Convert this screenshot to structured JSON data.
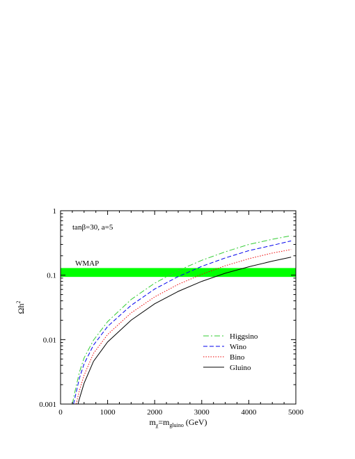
{
  "chart_data": {
    "type": "line",
    "title": "",
    "annotation": "tanβ=30, a=5",
    "band_label": "WMAP",
    "band": {
      "ymin": 0.094,
      "ymax": 0.129,
      "color": "#00ff00"
    },
    "xlabel": {
      "main": "m",
      "sub1": "χ",
      "mid": "=m",
      "sub2": "gluino",
      "tail": " (GeV)"
    },
    "ylabel": {
      "main": "Ωh",
      "sup": "2"
    },
    "xlim": [
      0,
      5000
    ],
    "ylim": [
      0.001,
      1
    ],
    "yscale": "log",
    "x_ticks": [
      0,
      1000,
      2000,
      3000,
      4000,
      5000
    ],
    "x_tick_labels": [
      "0",
      "1000",
      "2000",
      "3000",
      "4000",
      "5000"
    ],
    "y_ticks": [
      0.001,
      0.01,
      0.1,
      1
    ],
    "y_tick_labels": [
      "0.001",
      "0.01",
      "0.1",
      "1"
    ],
    "legend_position": "lower-right",
    "series": [
      {
        "name": "Higgsino",
        "color": "#33cc33",
        "dash": "dash-dot",
        "x": [
          250,
          300,
          400,
          500,
          700,
          1000,
          1500,
          2000,
          2500,
          3000,
          3500,
          4000,
          4500,
          4900
        ],
        "y": [
          0.001,
          0.0015,
          0.0031,
          0.0052,
          0.0098,
          0.019,
          0.042,
          0.075,
          0.118,
          0.17,
          0.23,
          0.3,
          0.36,
          0.41
        ]
      },
      {
        "name": "Wino",
        "color": "#0000ee",
        "dash": "dash",
        "x": [
          275,
          300,
          400,
          500,
          700,
          1000,
          1500,
          2000,
          2500,
          3000,
          3500,
          4000,
          4500,
          4900
        ],
        "y": [
          0.001,
          0.0012,
          0.0025,
          0.0042,
          0.0082,
          0.016,
          0.034,
          0.061,
          0.095,
          0.137,
          0.185,
          0.24,
          0.29,
          0.34
        ]
      },
      {
        "name": "Bino",
        "color": "#ee0000",
        "dash": "dot",
        "x": [
          330,
          400,
          500,
          700,
          1000,
          1500,
          2000,
          2500,
          3000,
          3500,
          4000,
          4500,
          4900
        ],
        "y": [
          0.001,
          0.0016,
          0.0028,
          0.0061,
          0.012,
          0.026,
          0.046,
          0.072,
          0.103,
          0.14,
          0.18,
          0.22,
          0.25
        ]
      },
      {
        "name": "Gluino",
        "color": "#000000",
        "dash": "solid",
        "x": [
          370,
          400,
          500,
          700,
          1000,
          1500,
          2000,
          2500,
          3000,
          3500,
          4000,
          4500,
          4900
        ],
        "y": [
          0.001,
          0.0012,
          0.0021,
          0.0046,
          0.0092,
          0.02,
          0.036,
          0.056,
          0.08,
          0.107,
          0.135,
          0.165,
          0.19
        ]
      }
    ]
  }
}
